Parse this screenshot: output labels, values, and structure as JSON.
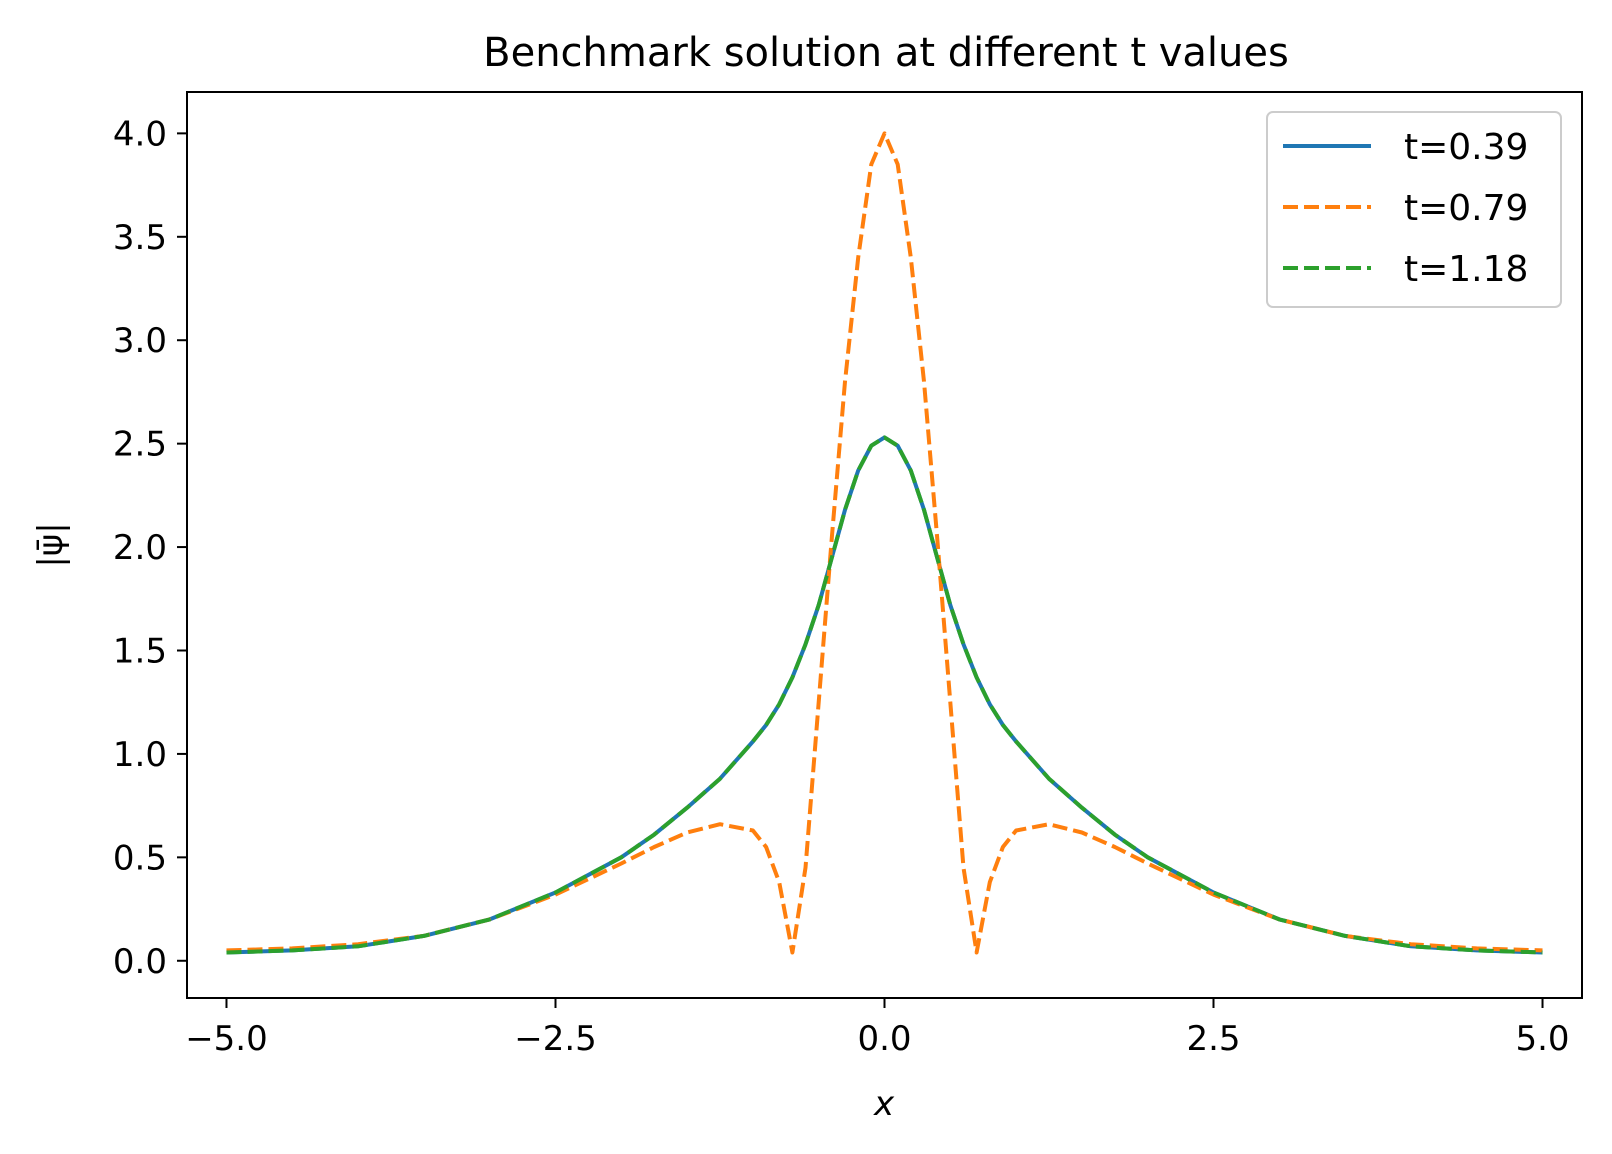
{
  "chart_data": {
    "type": "line",
    "title": "Benchmark solution at different t values",
    "xlabel": "x",
    "ylabel": "|ψ̄|",
    "xlim": [
      -5.3,
      5.3
    ],
    "ylim": [
      -0.18,
      4.2
    ],
    "x_ticks": [
      -5.0,
      -2.5,
      0.0,
      2.5,
      5.0
    ],
    "x_tick_labels": [
      "−5.0",
      "−2.5",
      "0.0",
      "2.5",
      "5.0"
    ],
    "y_ticks": [
      0.0,
      0.5,
      1.0,
      1.5,
      2.0,
      2.5,
      3.0,
      3.5,
      4.0
    ],
    "y_tick_labels": [
      "0.0",
      "0.5",
      "1.0",
      "1.5",
      "2.0",
      "2.5",
      "3.0",
      "3.5",
      "4.0"
    ],
    "grid": false,
    "legend_position": "top-right",
    "x": [
      -5.0,
      -4.5,
      -4.0,
      -3.5,
      -3.0,
      -2.5,
      -2.0,
      -1.75,
      -1.5,
      -1.25,
      -1.0,
      -0.9,
      -0.8,
      -0.7,
      -0.6,
      -0.5,
      -0.4,
      -0.3,
      -0.2,
      -0.1,
      0.0,
      0.1,
      0.2,
      0.3,
      0.4,
      0.5,
      0.6,
      0.7,
      0.8,
      0.9,
      1.0,
      1.25,
      1.5,
      1.75,
      2.0,
      2.5,
      3.0,
      3.5,
      4.0,
      4.5,
      5.0
    ],
    "series": [
      {
        "name": "t=0.39",
        "color": "#1f77b4",
        "style": "solid",
        "values": [
          0.04,
          0.05,
          0.07,
          0.12,
          0.2,
          0.33,
          0.5,
          0.61,
          0.74,
          0.88,
          1.06,
          1.14,
          1.24,
          1.37,
          1.53,
          1.72,
          1.95,
          2.18,
          2.37,
          2.49,
          2.53,
          2.49,
          2.37,
          2.18,
          1.95,
          1.72,
          1.53,
          1.37,
          1.24,
          1.14,
          1.06,
          0.88,
          0.74,
          0.61,
          0.5,
          0.33,
          0.2,
          0.12,
          0.07,
          0.05,
          0.04
        ]
      },
      {
        "name": "t=0.79",
        "color": "#ff7f0e",
        "style": "dashed",
        "values": [
          0.05,
          0.06,
          0.08,
          0.12,
          0.2,
          0.32,
          0.47,
          0.55,
          0.62,
          0.66,
          0.63,
          0.55,
          0.38,
          0.04,
          0.45,
          1.25,
          2.05,
          2.8,
          3.4,
          3.85,
          4.0,
          3.85,
          3.4,
          2.8,
          2.05,
          1.25,
          0.45,
          0.04,
          0.38,
          0.55,
          0.63,
          0.66,
          0.62,
          0.55,
          0.47,
          0.32,
          0.2,
          0.12,
          0.08,
          0.06,
          0.05
        ]
      },
      {
        "name": "t=1.18",
        "color": "#2ca02c",
        "style": "dashed",
        "values": [
          0.04,
          0.05,
          0.07,
          0.12,
          0.2,
          0.33,
          0.5,
          0.61,
          0.74,
          0.88,
          1.06,
          1.14,
          1.24,
          1.37,
          1.53,
          1.72,
          1.95,
          2.18,
          2.37,
          2.49,
          2.53,
          2.49,
          2.37,
          2.18,
          1.95,
          1.72,
          1.53,
          1.37,
          1.24,
          1.14,
          1.06,
          0.88,
          0.74,
          0.61,
          0.5,
          0.33,
          0.2,
          0.12,
          0.07,
          0.05,
          0.04
        ]
      }
    ]
  }
}
